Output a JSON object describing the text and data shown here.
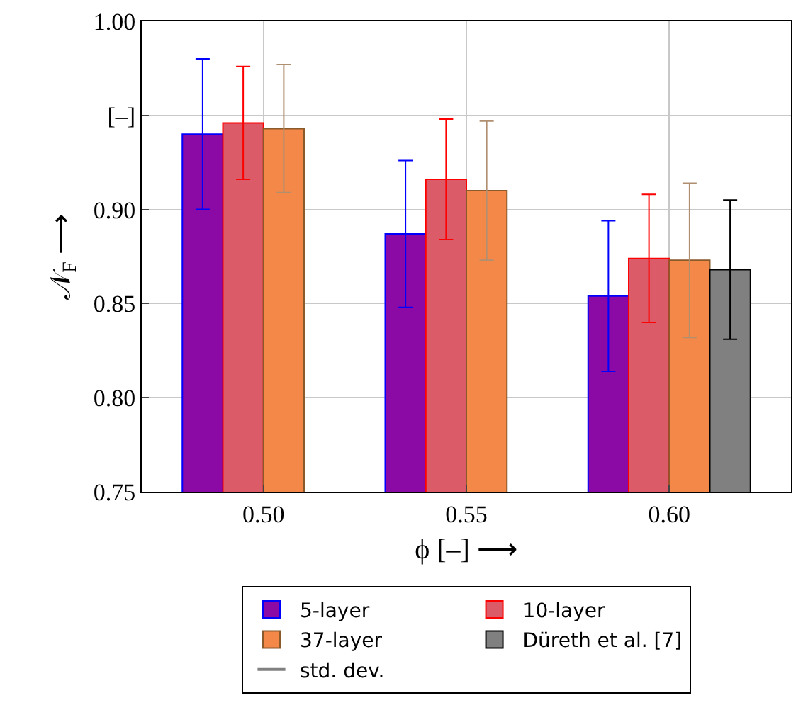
{
  "chart_data": {
    "type": "bar",
    "xlabel": "ϕ [–] ⟶",
    "ylabel": "𝒩$_{F}$ ⟶",
    "categories": [
      "0.50",
      "0.55",
      "0.60"
    ],
    "series": [
      {
        "name": "5-layer",
        "color": "#8b0aa5",
        "values": [
          0.94,
          0.887,
          0.854
        ],
        "errors": [
          0.04,
          0.039,
          0.04
        ]
      },
      {
        "name": "10-layer",
        "color": "#db5c68",
        "values": [
          0.946,
          0.916,
          0.874
        ],
        "errors": [
          0.03,
          0.032,
          0.034
        ]
      },
      {
        "name": "37-layer",
        "color": "#f48849",
        "values": [
          0.943,
          0.91,
          0.873
        ],
        "errors": [
          0.034,
          0.037,
          0.041
        ]
      },
      {
        "name": "Düreth et al. [7]",
        "color": "#808080",
        "values": [
          null,
          null,
          0.868
        ],
        "errors": [
          null,
          null,
          0.037
        ]
      }
    ],
    "annotations": [
      "std. dev."
    ],
    "ylim": [
      0.75,
      1.0
    ],
    "yticks": [
      0.75,
      {
        "value": 0.8,
        "label": "0.80"
      },
      0.85,
      {
        "value": 0.9,
        "label": "0.90"
      },
      {
        "value": 0.95,
        "label": "[–]"
      },
      {
        "value": 1.0,
        "label": "1.00"
      }
    ],
    "grid": true,
    "legend": "bottom"
  }
}
